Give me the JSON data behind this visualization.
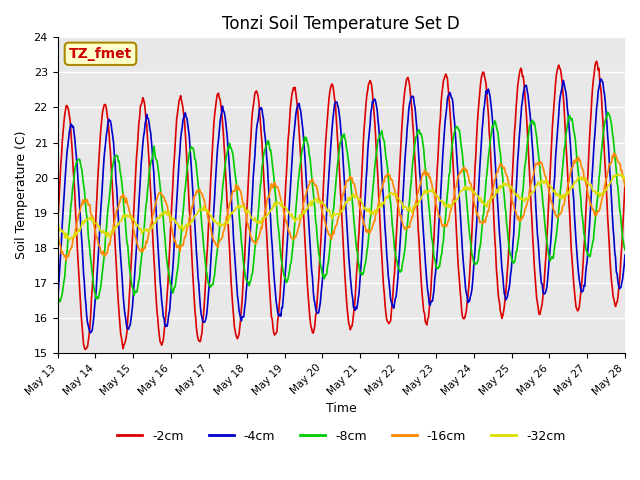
{
  "title": "Tonzi Soil Temperature Set D",
  "xlabel": "Time",
  "ylabel": "Soil Temperature (C)",
  "ylim": [
    15.0,
    24.0
  ],
  "yticks": [
    15.0,
    16.0,
    17.0,
    18.0,
    19.0,
    20.0,
    21.0,
    22.0,
    23.0,
    24.0
  ],
  "xlim_days": [
    13,
    28
  ],
  "xtick_days": [
    13,
    14,
    15,
    16,
    17,
    18,
    19,
    20,
    21,
    22,
    23,
    24,
    25,
    26,
    27,
    28
  ],
  "xtick_labels": [
    "May 13",
    "May 14",
    "May 15",
    "May 16",
    "May 17",
    "May 18",
    "May 19",
    "May 20",
    "May 21",
    "May 22",
    "May 23",
    "May 24",
    "May 25",
    "May 26",
    "May 27",
    "May 28"
  ],
  "series_colors": [
    "#dd0000",
    "#0000cc",
    "#00cc00",
    "#ff8800",
    "#dddd00"
  ],
  "series_labels": [
    "-2cm",
    "-4cm",
    "-8cm",
    "-16cm",
    "-32cm"
  ],
  "legend_label": "TZ_fmet",
  "legend_box_color": "#ffffcc",
  "legend_text_color": "#cc0000",
  "bg_color": "#e8e8e8",
  "fig_bg": "#ffffff",
  "grid_color": "#ffffff",
  "n_points": 720,
  "base_temp": 18.5,
  "amplitudes": [
    3.5,
    3.0,
    2.0,
    0.8,
    0.25
  ],
  "phase_shifts": [
    0.0,
    0.12,
    0.3,
    0.48,
    0.58
  ],
  "trend_slope": 0.09,
  "trend_start_day": 13
}
